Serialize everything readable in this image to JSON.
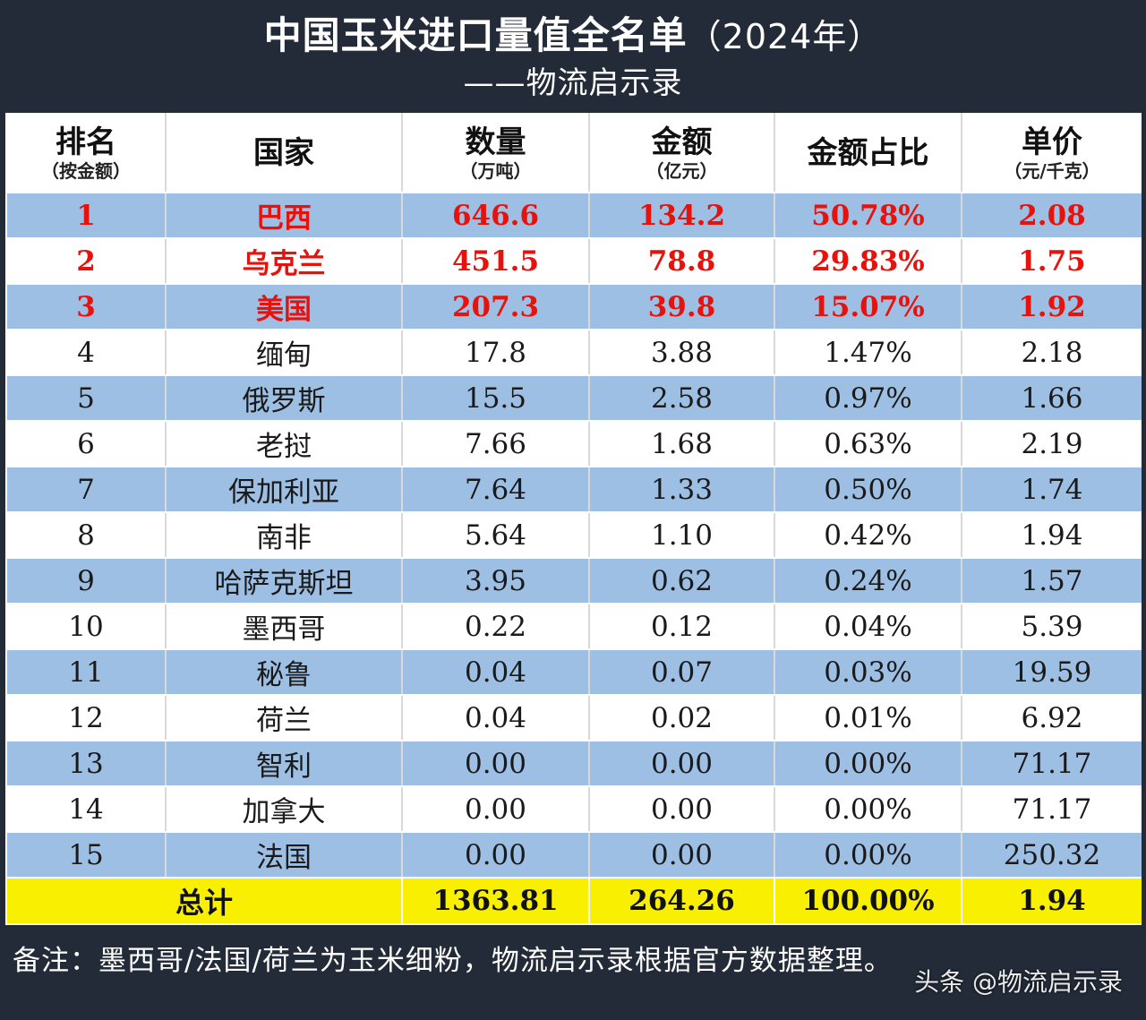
{
  "header": {
    "title": "中国玉米进口量值全名单",
    "title_year": "（2024年）",
    "subtitle": "——物流启示录"
  },
  "table": {
    "columns": [
      {
        "main": "排名",
        "sub": "（按金额）"
      },
      {
        "main": "国家",
        "sub": ""
      },
      {
        "main": "数量",
        "sub": "（万吨）"
      },
      {
        "main": "金额",
        "sub": "（亿元）"
      },
      {
        "main": "金额占比",
        "sub": ""
      },
      {
        "main": "单价",
        "sub": "（元/千克）"
      }
    ],
    "rows": [
      {
        "rank": "1",
        "country": "巴西",
        "qty": "646.6",
        "amount": "134.2",
        "share": "50.78%",
        "price": "2.08"
      },
      {
        "rank": "2",
        "country": "乌克兰",
        "qty": "451.5",
        "amount": "78.8",
        "share": "29.83%",
        "price": "1.75"
      },
      {
        "rank": "3",
        "country": "美国",
        "qty": "207.3",
        "amount": "39.8",
        "share": "15.07%",
        "price": "1.92"
      },
      {
        "rank": "4",
        "country": "缅甸",
        "qty": "17.8",
        "amount": "3.88",
        "share": "1.47%",
        "price": "2.18"
      },
      {
        "rank": "5",
        "country": "俄罗斯",
        "qty": "15.5",
        "amount": "2.58",
        "share": "0.97%",
        "price": "1.66"
      },
      {
        "rank": "6",
        "country": "老挝",
        "qty": "7.66",
        "amount": "1.68",
        "share": "0.63%",
        "price": "2.19"
      },
      {
        "rank": "7",
        "country": "保加利亚",
        "qty": "7.64",
        "amount": "1.33",
        "share": "0.50%",
        "price": "1.74"
      },
      {
        "rank": "8",
        "country": "南非",
        "qty": "5.64",
        "amount": "1.10",
        "share": "0.42%",
        "price": "1.94"
      },
      {
        "rank": "9",
        "country": "哈萨克斯坦",
        "qty": "3.95",
        "amount": "0.62",
        "share": "0.24%",
        "price": "1.57"
      },
      {
        "rank": "10",
        "country": "墨西哥",
        "qty": "0.22",
        "amount": "0.12",
        "share": "0.04%",
        "price": "5.39"
      },
      {
        "rank": "11",
        "country": "秘鲁",
        "qty": "0.04",
        "amount": "0.07",
        "share": "0.03%",
        "price": "19.59"
      },
      {
        "rank": "12",
        "country": "荷兰",
        "qty": "0.04",
        "amount": "0.02",
        "share": "0.01%",
        "price": "6.92"
      },
      {
        "rank": "13",
        "country": "智利",
        "qty": "0.00",
        "amount": "0.00",
        "share": "0.00%",
        "price": "71.17"
      },
      {
        "rank": "14",
        "country": "加拿大",
        "qty": "0.00",
        "amount": "0.00",
        "share": "0.00%",
        "price": "71.17"
      },
      {
        "rank": "15",
        "country": "法国",
        "qty": "0.00",
        "amount": "0.00",
        "share": "0.00%",
        "price": "250.32"
      }
    ],
    "total": {
      "label": "总计",
      "qty": "1363.81",
      "amount": "264.26",
      "share": "100.00%",
      "price": "1.94"
    }
  },
  "note": "备注：墨西哥/法国/荷兰为玉米细粉，物流启示录根据官方数据整理。",
  "watermark": "头条 @物流启示录",
  "colors": {
    "highlight_red": "#e8120d",
    "band_blue": "#9dbfe3",
    "total_yellow": "#f8f000",
    "frame_dark": "#232b38"
  }
}
